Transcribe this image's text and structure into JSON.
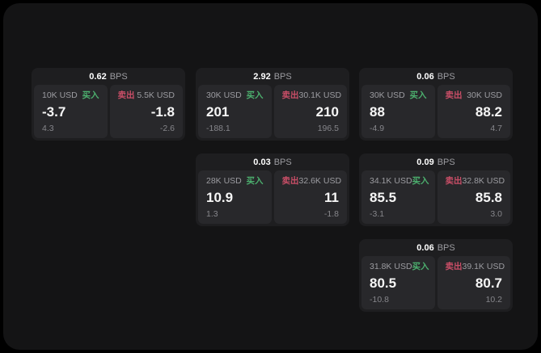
{
  "labels": {
    "buy": "买入",
    "sell": "卖出",
    "bps_unit": "BPS"
  },
  "colors": {
    "background": "#141415",
    "card": "#1e1e20",
    "panel": "#28282b",
    "buy_green": "#4caf6e",
    "sell_red": "#c94e67",
    "text_secondary": "#9c9ca1",
    "text_muted": "#86868b"
  },
  "cards": [
    {
      "bps": "0.62",
      "buy": {
        "amount": "10K USD",
        "main": "-3.7",
        "sub": "4.3"
      },
      "sell": {
        "amount": "5.5K USD",
        "main": "-1.8",
        "sub": "-2.6"
      }
    },
    {
      "bps": "2.92",
      "buy": {
        "amount": "30K USD",
        "main": "201",
        "sub": "-188.1"
      },
      "sell": {
        "amount": "30.1K USD",
        "main": "210",
        "sub": "196.5"
      }
    },
    {
      "bps": "0.06",
      "buy": {
        "amount": "30K USD",
        "main": "88",
        "sub": "-4.9"
      },
      "sell": {
        "amount": "30K USD",
        "main": "88.2",
        "sub": "4.7"
      }
    },
    {
      "bps": "0.03",
      "buy": {
        "amount": "28K USD",
        "main": "10.9",
        "sub": "1.3"
      },
      "sell": {
        "amount": "32.6K USD",
        "main": "11",
        "sub": "-1.8"
      }
    },
    {
      "bps": "0.09",
      "buy": {
        "amount": "34.1K USD",
        "main": "85.5",
        "sub": "-3.1"
      },
      "sell": {
        "amount": "32.8K USD",
        "main": "85.8",
        "sub": "3.0"
      }
    },
    {
      "bps": "0.06",
      "buy": {
        "amount": "31.8K USD",
        "main": "80.5",
        "sub": "-10.8"
      },
      "sell": {
        "amount": "39.1K USD",
        "main": "80.7",
        "sub": "10.2"
      }
    }
  ]
}
